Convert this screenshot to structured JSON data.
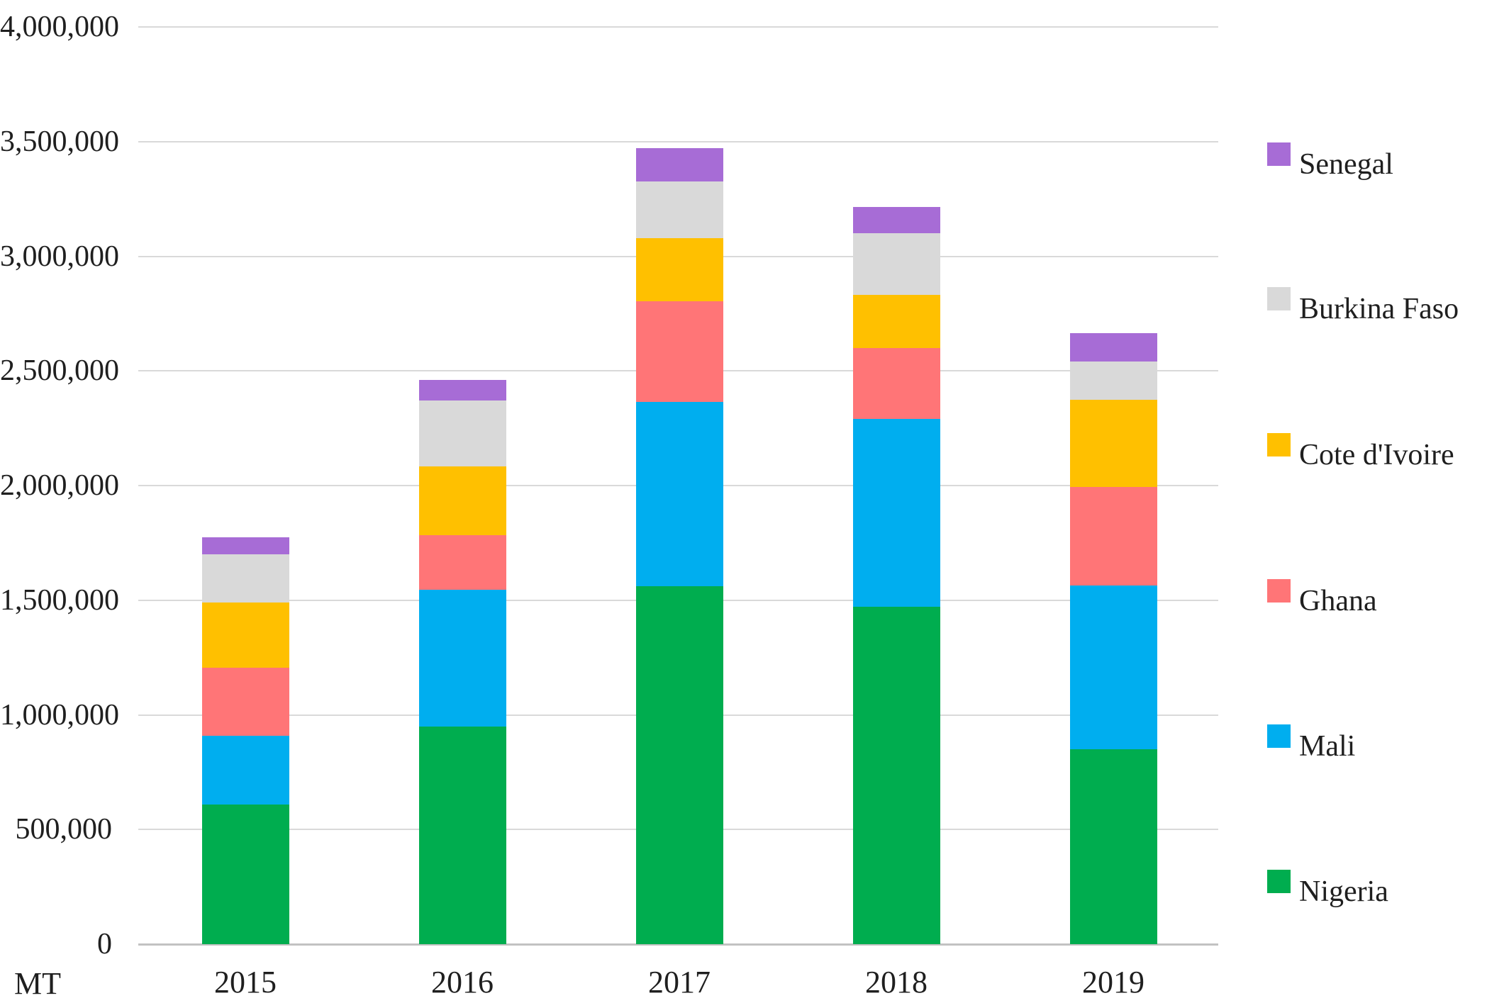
{
  "chart_data": {
    "type": "bar",
    "stacked": true,
    "title": "",
    "categories": [
      "2015",
      "2016",
      "2017",
      "2018",
      "2019"
    ],
    "series": [
      {
        "name": "Nigeria",
        "color": "#00AD4F",
        "values": [
          610000,
          950000,
          1560000,
          1470000,
          850000
        ]
      },
      {
        "name": "Mali",
        "color": "#00AEEF",
        "values": [
          300000,
          595000,
          805000,
          820000,
          715000
        ]
      },
      {
        "name": "Ghana",
        "color": "#FF7577",
        "values": [
          295000,
          240000,
          440000,
          310000,
          430000
        ]
      },
      {
        "name": "Cote d'Ivoire",
        "color": "#FFC000",
        "values": [
          285000,
          300000,
          275000,
          230000,
          380000
        ]
      },
      {
        "name": "Burkina Faso",
        "color": "#D9D9D9",
        "values": [
          210000,
          285000,
          245000,
          270000,
          165000
        ]
      },
      {
        "name": "Senegal",
        "color": "#A76CD6",
        "values": [
          75000,
          90000,
          145000,
          115000,
          125000
        ]
      }
    ],
    "totals": [
      1775000,
      2460000,
      3470000,
      3215000,
      2665000
    ],
    "legend_order": [
      "Senegal",
      "Burkina Faso",
      "Cote d'Ivoire",
      "Ghana",
      "Mali",
      "Nigeria"
    ],
    "legend_position": "right",
    "grid": true,
    "y_axis": {
      "label": "MT",
      "min": 0,
      "max": 4000000,
      "tick_step": 500000,
      "tick_labels": [
        "0",
        "500,000",
        "1,000,000",
        "1,500,000",
        "2,000,000",
        "2,500,000",
        "3,000,000",
        "3,500,000",
        "4,000,000"
      ]
    },
    "colors": {
      "gridline": "#d9d9d9",
      "axis_line": "#c2c2c2",
      "text": "#1f1f1f",
      "background": "#ffffff"
    }
  }
}
